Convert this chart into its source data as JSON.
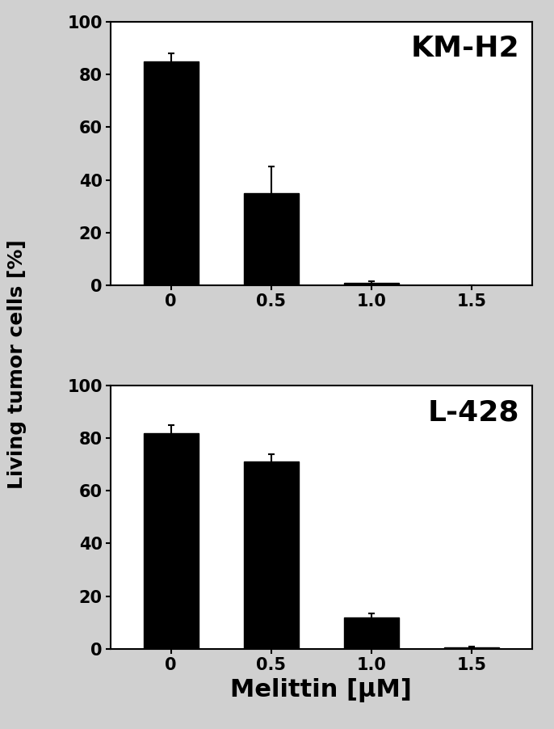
{
  "panel1": {
    "label": "KM-H2",
    "x_positions": [
      0,
      1,
      2,
      3
    ],
    "x_labels": [
      "0",
      "0.5",
      "1.0",
      "1.5"
    ],
    "values": [
      85,
      35,
      1,
      0
    ],
    "errors": [
      3,
      10,
      0.5,
      0
    ]
  },
  "panel2": {
    "label": "L-428",
    "x_positions": [
      0,
      1,
      2,
      3
    ],
    "x_labels": [
      "0",
      "0.5",
      "1.0",
      "1.5"
    ],
    "values": [
      82,
      71,
      12,
      0.5
    ],
    "errors": [
      3,
      3,
      1.5,
      0.3
    ]
  },
  "ylabel": "Living tumor cells [%]",
  "xlabel": "Melittin [μM]",
  "bar_color": "#000000",
  "bar_width": 0.55,
  "ylim": [
    0,
    100
  ],
  "yticks": [
    0,
    20,
    40,
    60,
    80,
    100
  ],
  "fig_facecolor": "#d0d0d0",
  "ax_facecolor": "#ffffff",
  "error_color": "#000000",
  "capsize": 3,
  "tick_fontsize": 15,
  "panel_label_fontsize": 26,
  "ylabel_fontsize": 18,
  "xlabel_fontsize": 22
}
